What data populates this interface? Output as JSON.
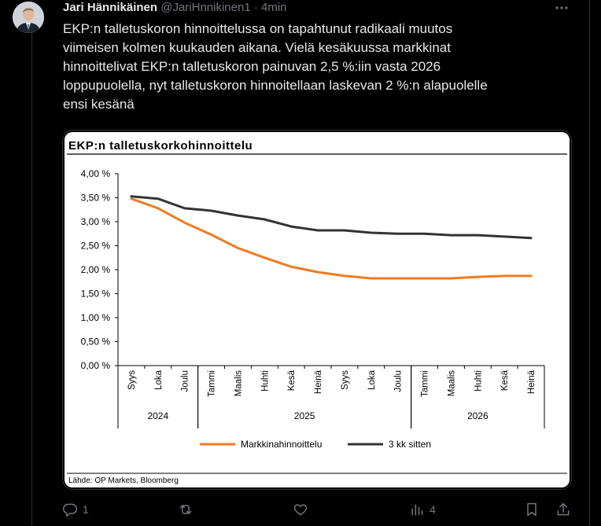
{
  "post": {
    "author_name": "Jari Hännikäinen",
    "handle": "@JariHnnikinen1",
    "separator": "·",
    "time": "4min",
    "text_lines": [
      "EKP:n talletuskoron hinnoittelussa on tapahtunut radikaali muutos",
      "viimeisen kolmen kuukauden aikana. Vielä kesäkuussa markkinat",
      "hinnoittelivat EKP:n talletuskoron painuvan 2,5 %:iin vasta 2026",
      "loppupuolella, nyt talletuskoron hinnoitellaan laskevan 2 %:n alapuolelle",
      "ensi kesänä"
    ]
  },
  "actions": {
    "reply_count": "1",
    "repost_count": "",
    "like_count": "",
    "views_count": "4"
  },
  "icons": {
    "more": "more-options-icon",
    "reply": "reply-icon",
    "repost": "repost-icon",
    "like": "heart-icon",
    "views": "analytics-icon",
    "bookmark": "bookmark-icon",
    "share": "share-icon"
  },
  "chart_data": {
    "type": "line",
    "title": "EKP:n talletuskorkohinnoittelu",
    "source": "Lähde: OP Markets, Bloomberg",
    "categories": [
      "Syys",
      "Loka",
      "Joulu",
      "Tammi",
      "Maalis",
      "Huhti",
      "Kesä",
      "Heinä",
      "Syys",
      "Loka",
      "Joulu",
      "Tammi",
      "Maalis",
      "Huhti",
      "Kesä",
      "Heinä"
    ],
    "year_groups": [
      {
        "label": "2024",
        "start": 0,
        "end": 2
      },
      {
        "label": "2025",
        "start": 3,
        "end": 10
      },
      {
        "label": "2026",
        "start": 11,
        "end": 15
      }
    ],
    "yticks": [
      "0,00 %",
      "0,50 %",
      "1,00 %",
      "1,50 %",
      "2,00 %",
      "2,50 %",
      "3,00 %",
      "3,50 %",
      "4,00 %"
    ],
    "ylim": [
      0,
      4
    ],
    "series": [
      {
        "name": "Markkinahinnoittelu",
        "color": "#f47a20",
        "values": [
          3.48,
          3.28,
          2.98,
          2.73,
          2.45,
          2.25,
          2.06,
          1.95,
          1.87,
          1.82,
          1.82,
          1.82,
          1.82,
          1.85,
          1.87,
          1.87
        ]
      },
      {
        "name": "3 kk sitten",
        "color": "#333333",
        "values": [
          3.53,
          3.48,
          3.28,
          3.23,
          3.13,
          3.05,
          2.9,
          2.82,
          2.82,
          2.77,
          2.75,
          2.75,
          2.72,
          2.72,
          2.69,
          2.66
        ]
      }
    ],
    "legend_position": "bottom",
    "grid": false
  }
}
